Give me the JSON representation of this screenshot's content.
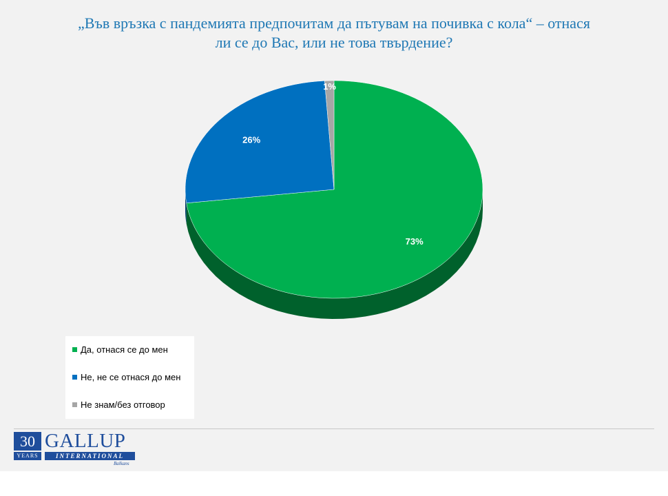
{
  "title": {
    "line1": "„Във връзка с пандемията предпочитам да пътувам на почивка с кола“ – отнася",
    "line2": "ли се до Вас, или не това твърдение?"
  },
  "chart_data": {
    "type": "pie",
    "title": "„Във връзка с пандемията предпочитам да пътувам на почивка с кола“ – отнася ли се до Вас, или не това твърдение?",
    "three_d": true,
    "legend_position": "bottom-left",
    "slices": [
      {
        "label": "Да, отнася се до мен",
        "value": 73,
        "display": "73%",
        "color": "#00b050"
      },
      {
        "label": "Не, не се отнася до мен",
        "value": 26,
        "display": "26%",
        "color": "#0070c0"
      },
      {
        "label": "Не знам/без отговор",
        "value": 1,
        "display": "1%",
        "color": "#a6a6a6"
      }
    ]
  },
  "legend": {
    "items": [
      {
        "label": "Да, отнася се до мен",
        "color": "#00b050"
      },
      {
        "label": "Не, не се отнася до мен",
        "color": "#0070c0"
      },
      {
        "label": "Не знам/без отговор",
        "color": "#a6a6a6"
      }
    ]
  },
  "logo": {
    "number": "30",
    "years": "YEARS",
    "brand": "GALLUP",
    "international": "INTERNATIONAL",
    "region": "Balkans"
  }
}
